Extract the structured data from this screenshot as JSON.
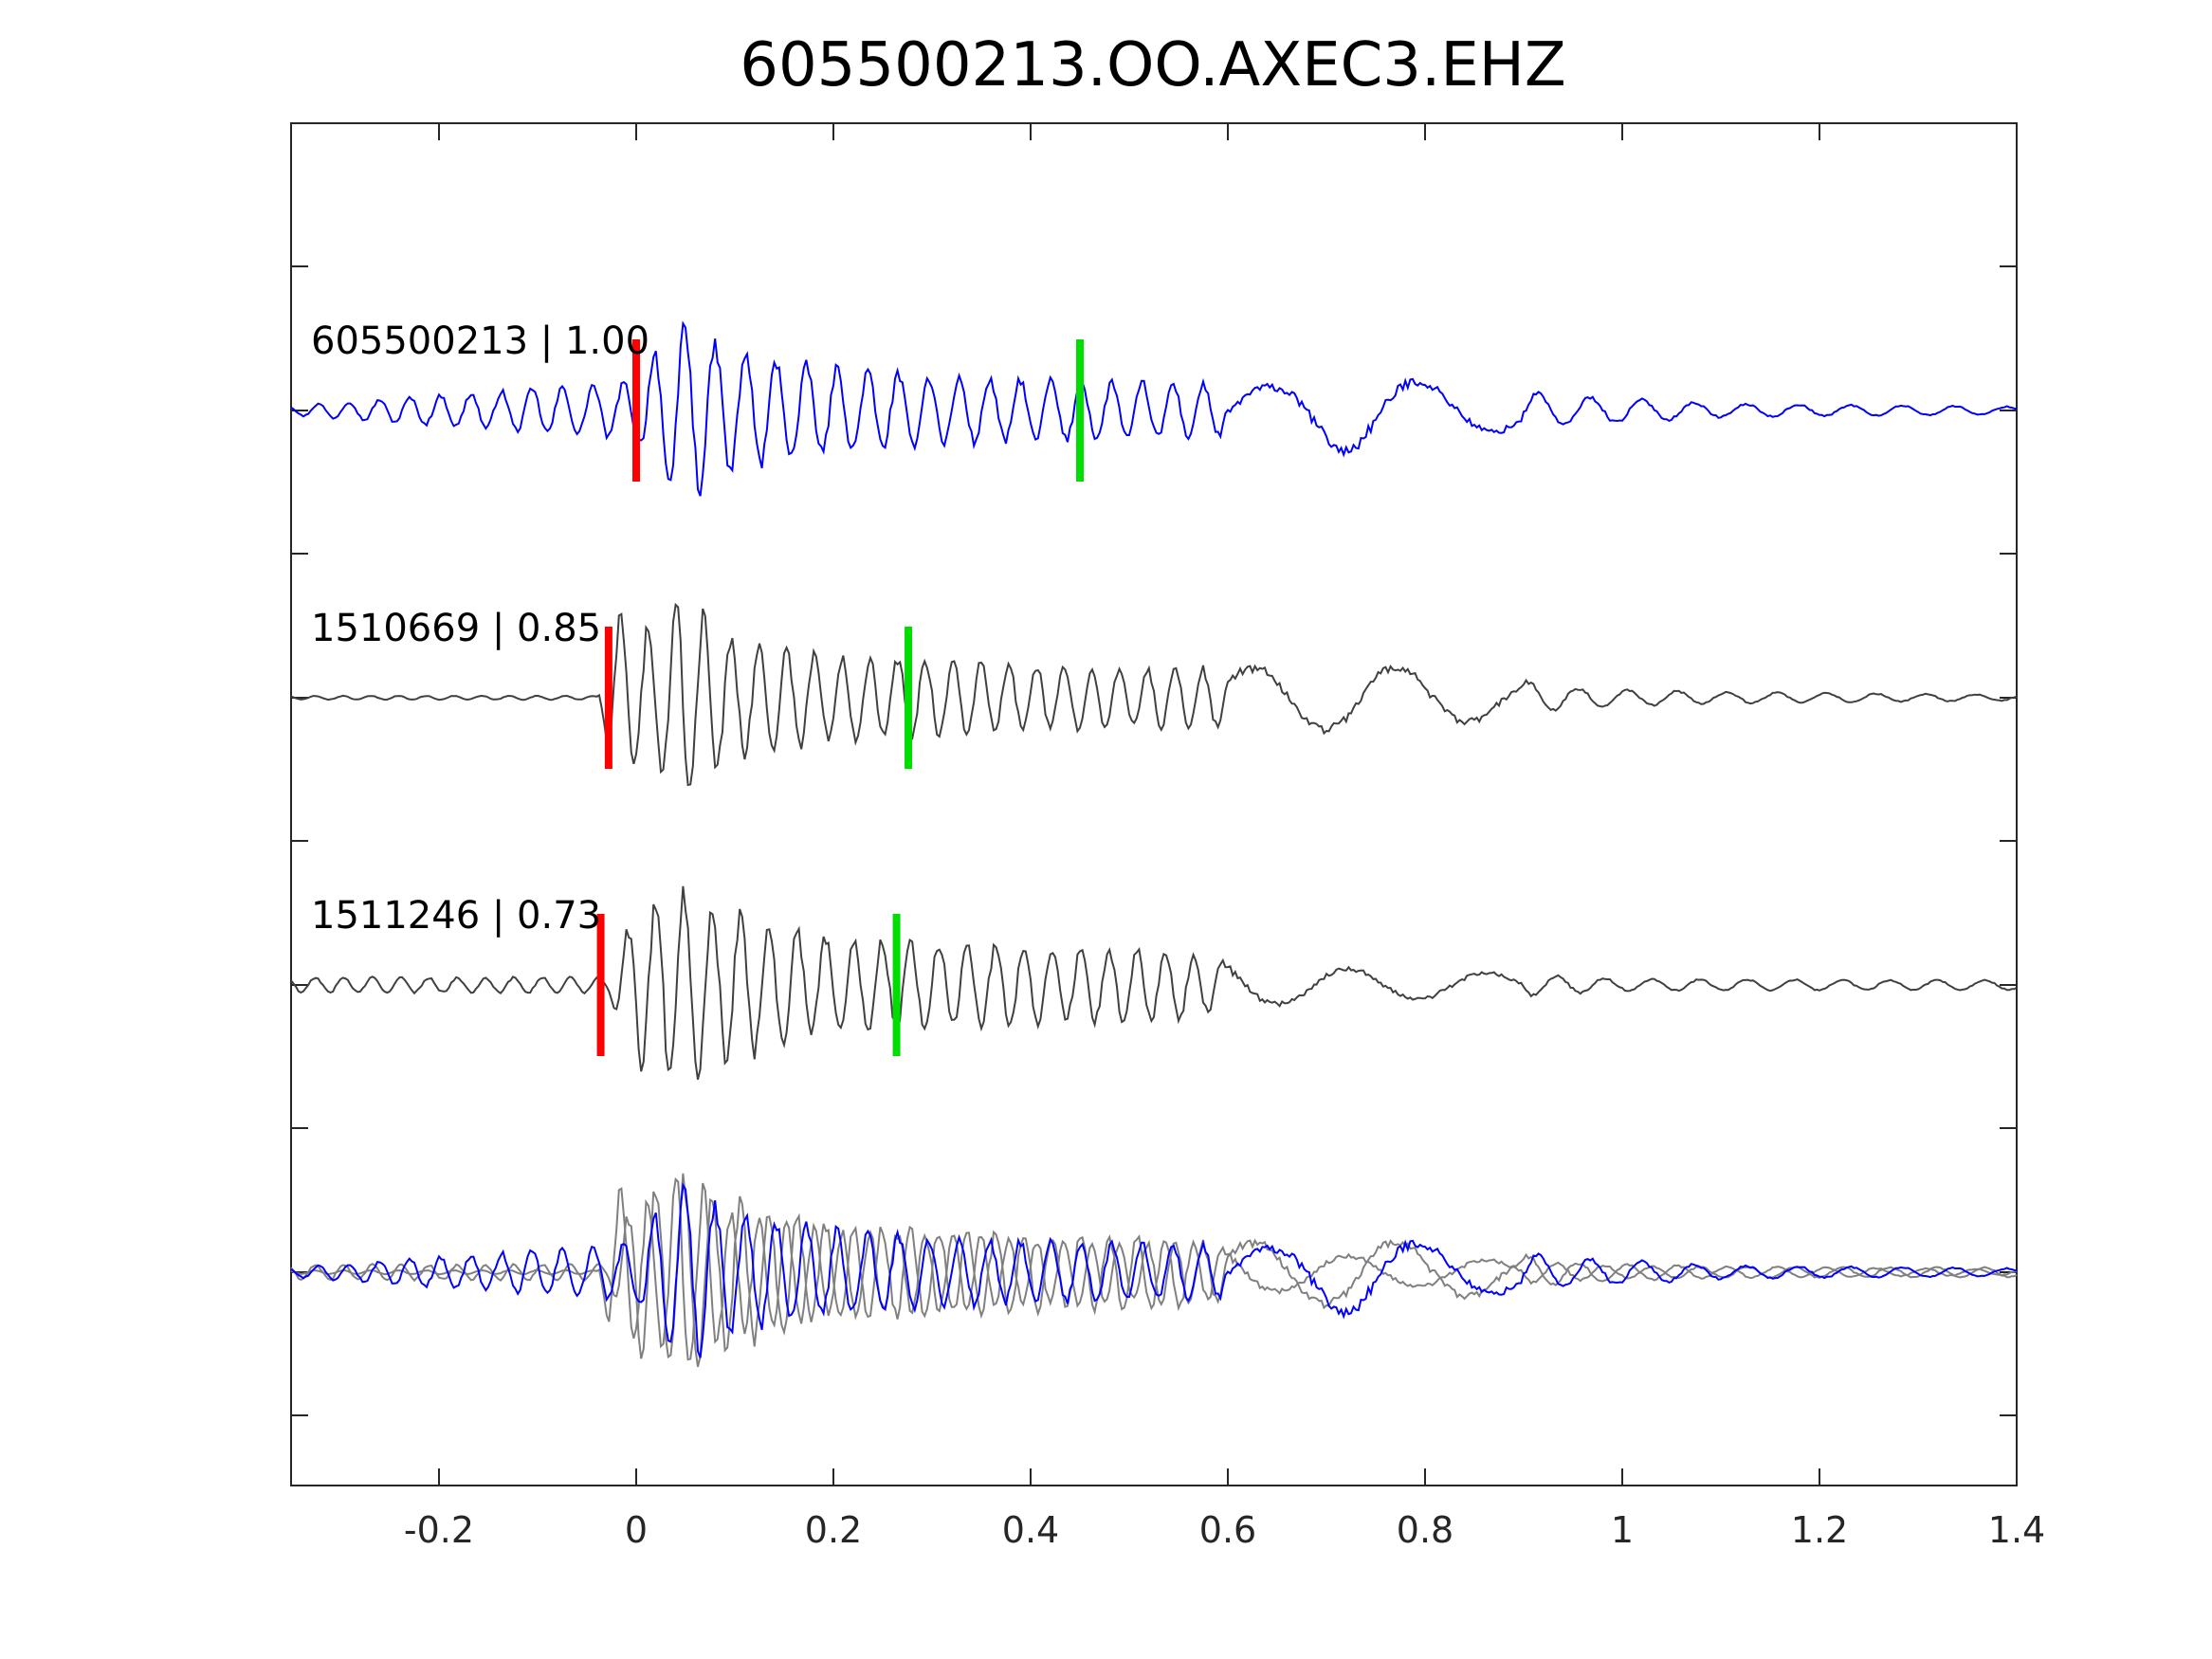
{
  "chart_data": {
    "type": "line",
    "title": "605500213.OO.AXEC3.EHZ",
    "xlabel": "",
    "ylabel": "",
    "xlim": [
      -0.35,
      1.4
    ],
    "xticks": [
      -0.2,
      0,
      0.2,
      0.4,
      0.6,
      0.8,
      1,
      1.2,
      1.4
    ],
    "xtick_labels": [
      "-0.2",
      "0",
      "0.2",
      "0.4",
      "0.6",
      "0.8",
      "1",
      "1.2",
      "1.4"
    ],
    "grid": false,
    "colors": {
      "template": "#0000ff",
      "match": "#404040",
      "overlay_match": "#808080",
      "p_pick": "#ff0000",
      "s_pick": "#00dd00",
      "axes": "#262626"
    },
    "traces": [
      {
        "label": "605500213 | 1.00",
        "event_id": "605500213",
        "correlation": 1.0,
        "p_pick_time": 0.0,
        "s_pick_time": 0.45,
        "onset_time": -0.02,
        "color": "#0000ff",
        "pre_noise": 0.32,
        "envelope": [
          [
            -0.35,
            0.05
          ],
          [
            0.0,
            0.3
          ],
          [
            0.04,
            1.0
          ],
          [
            0.08,
            0.7
          ],
          [
            0.15,
            0.5
          ],
          [
            0.3,
            0.35
          ],
          [
            0.5,
            0.3
          ],
          [
            0.65,
            0.25
          ],
          [
            0.72,
            0.45
          ],
          [
            0.8,
            0.3
          ],
          [
            0.95,
            0.15
          ],
          [
            1.1,
            0.07
          ],
          [
            1.4,
            0.04
          ]
        ]
      },
      {
        "label": "1510669 | 0.85",
        "event_id": "1510669",
        "correlation": 0.85,
        "p_pick_time": -0.028,
        "s_pick_time": 0.276,
        "onset_time": -0.03,
        "color": "#404040",
        "pre_noise": 0.03,
        "envelope": [
          [
            -0.35,
            0.02
          ],
          [
            -0.04,
            0.02
          ],
          [
            -0.02,
            0.95
          ],
          [
            0.0,
            0.7
          ],
          [
            0.05,
            1.0
          ],
          [
            0.1,
            0.6
          ],
          [
            0.2,
            0.45
          ],
          [
            0.4,
            0.35
          ],
          [
            0.55,
            0.3
          ],
          [
            0.75,
            0.35
          ],
          [
            0.82,
            0.3
          ],
          [
            0.95,
            0.1
          ],
          [
            1.1,
            0.06
          ],
          [
            1.4,
            0.03
          ]
        ]
      },
      {
        "label": "1511246 | 0.73",
        "event_id": "1511246",
        "correlation": 0.73,
        "p_pick_time": -0.036,
        "s_pick_time": 0.264,
        "onset_time": -0.03,
        "color": "#404040",
        "pre_noise": 0.08,
        "envelope": [
          [
            -0.35,
            0.08
          ],
          [
            -0.03,
            0.08
          ],
          [
            0.0,
            0.8
          ],
          [
            0.05,
            1.0
          ],
          [
            0.1,
            0.75
          ],
          [
            0.2,
            0.5
          ],
          [
            0.4,
            0.4
          ],
          [
            0.55,
            0.35
          ],
          [
            0.65,
            0.2
          ],
          [
            0.9,
            0.12
          ],
          [
            1.0,
            0.06
          ],
          [
            1.4,
            0.05
          ]
        ]
      }
    ]
  }
}
